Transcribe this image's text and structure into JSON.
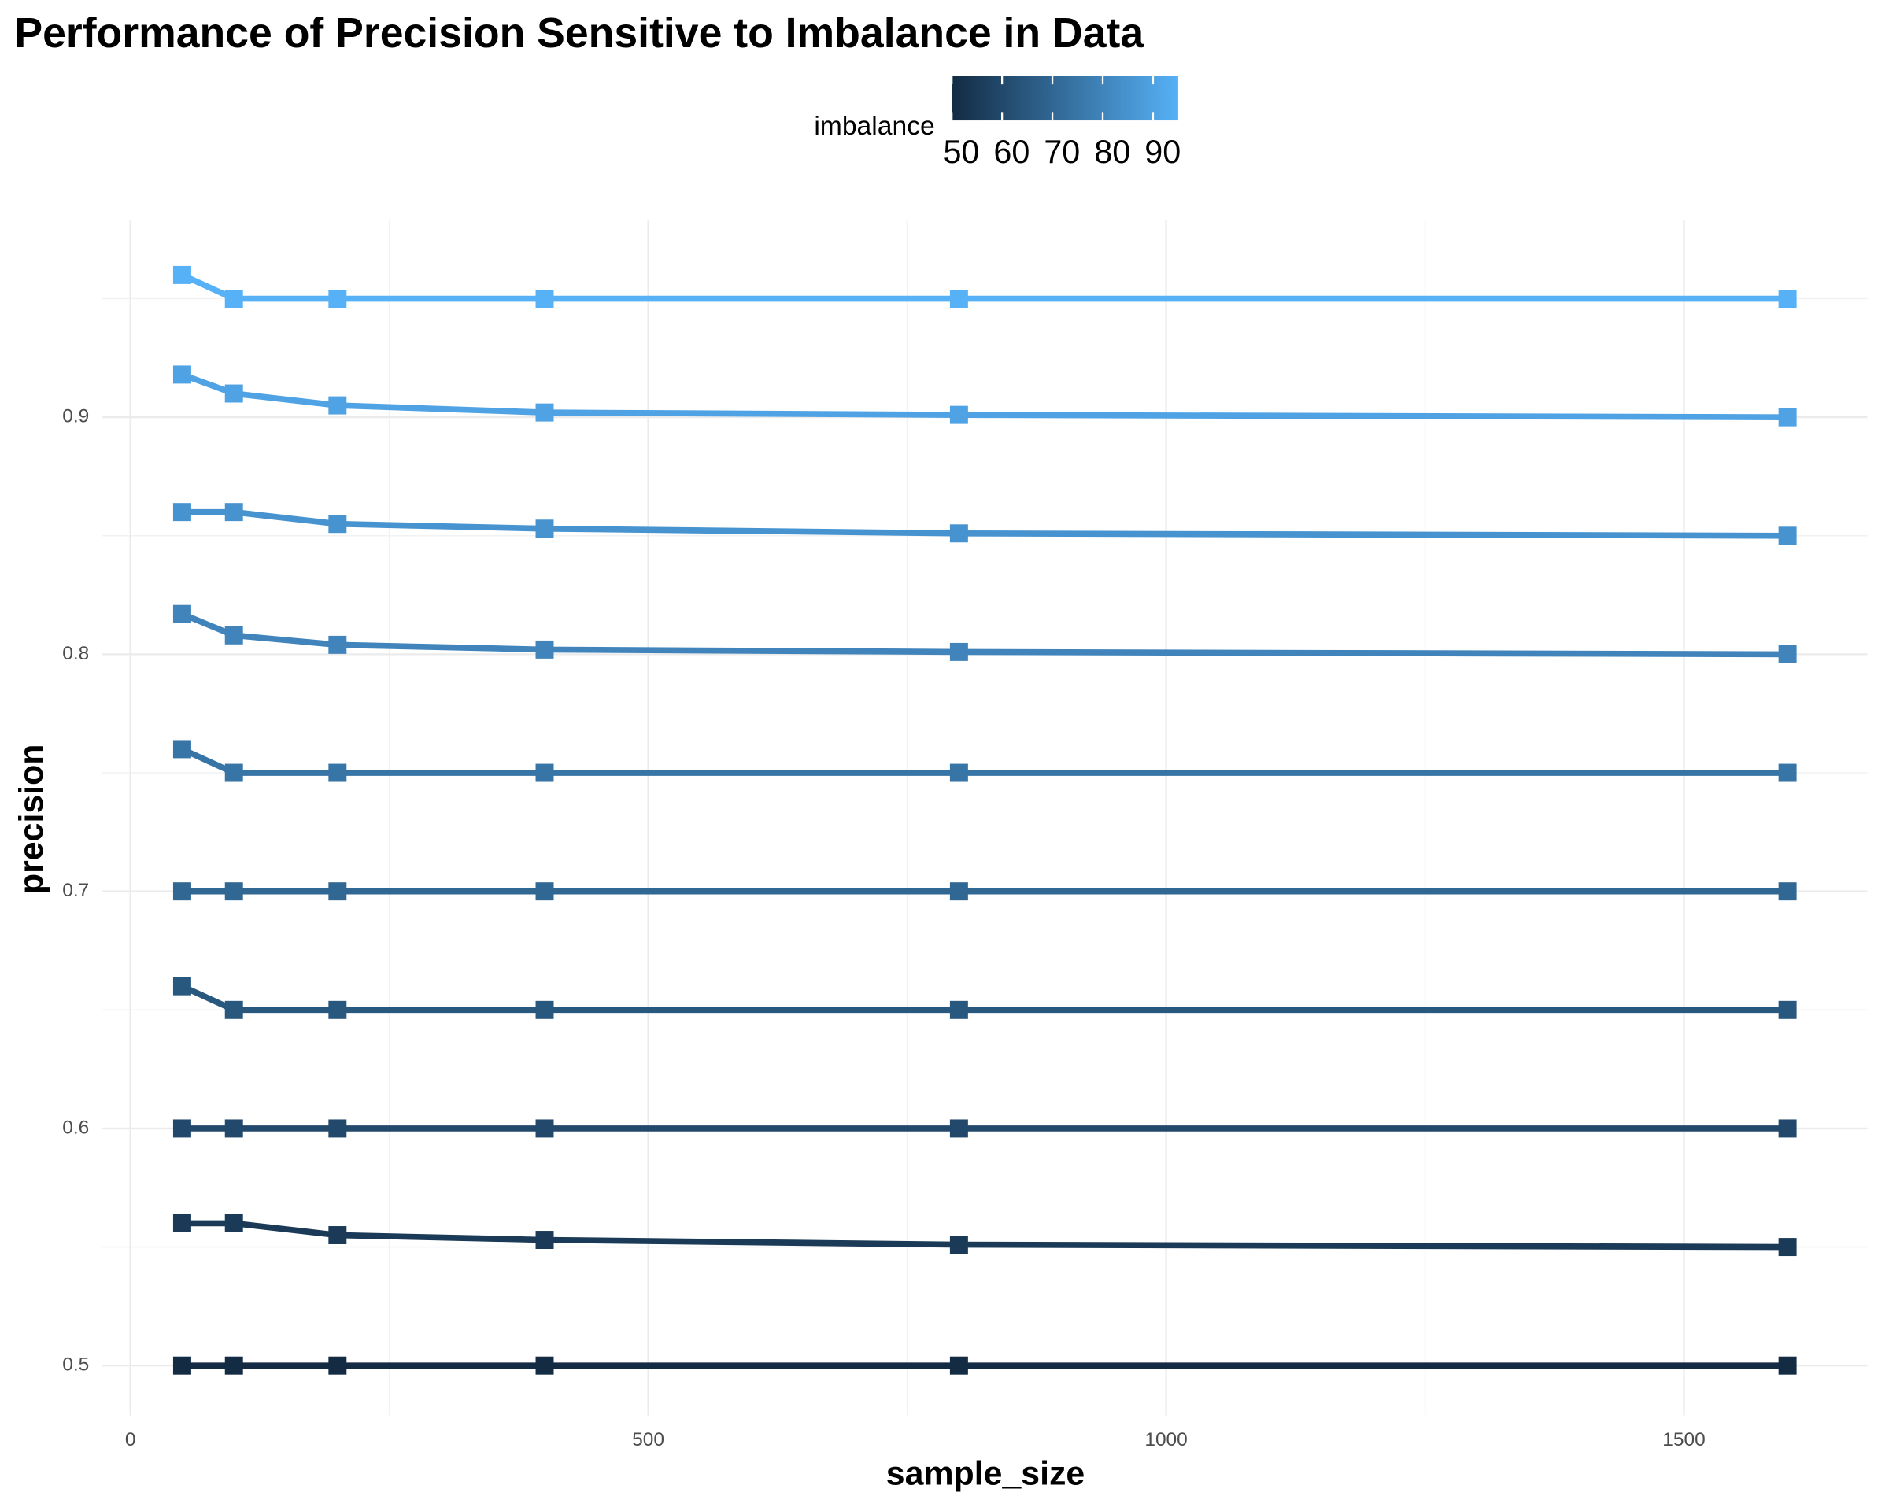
{
  "chart_data": {
    "type": "line",
    "title": "Performance of Precision Sensitive to Imbalance in Data",
    "x_label": "sample_size",
    "y_label": "precision",
    "x": [
      50,
      100,
      200,
      400,
      800,
      1600
    ],
    "series": [
      {
        "imbalance": 50,
        "values": [
          0.5,
          0.5,
          0.5,
          0.5,
          0.5,
          0.5
        ]
      },
      {
        "imbalance": 55,
        "values": [
          0.56,
          0.56,
          0.555,
          0.553,
          0.551,
          0.55
        ]
      },
      {
        "imbalance": 60,
        "values": [
          0.6,
          0.6,
          0.6,
          0.6,
          0.6,
          0.6
        ]
      },
      {
        "imbalance": 65,
        "values": [
          0.66,
          0.65,
          0.65,
          0.65,
          0.65,
          0.65
        ]
      },
      {
        "imbalance": 70,
        "values": [
          0.7,
          0.7,
          0.7,
          0.7,
          0.7,
          0.7
        ]
      },
      {
        "imbalance": 75,
        "values": [
          0.76,
          0.75,
          0.75,
          0.75,
          0.75,
          0.75
        ]
      },
      {
        "imbalance": 80,
        "values": [
          0.817,
          0.808,
          0.804,
          0.802,
          0.801,
          0.8
        ]
      },
      {
        "imbalance": 85,
        "values": [
          0.86,
          0.86,
          0.855,
          0.853,
          0.851,
          0.85
        ]
      },
      {
        "imbalance": 90,
        "values": [
          0.918,
          0.91,
          0.905,
          0.902,
          0.901,
          0.9
        ]
      },
      {
        "imbalance": 95,
        "values": [
          0.96,
          0.95,
          0.95,
          0.95,
          0.95,
          0.95
        ]
      }
    ],
    "colorbar": {
      "title": "imbalance",
      "low": "#132B43",
      "high": "#56B1F7",
      "lim": [
        50,
        95
      ],
      "ticks": [
        50,
        60,
        70,
        80,
        90
      ]
    },
    "xlim": [
      -27,
      1677
    ],
    "xticks": [
      0,
      500,
      1000,
      1500
    ],
    "ylim": [
      0.479,
      0.983
    ],
    "yticks": [
      0.5,
      0.6,
      0.7,
      0.8,
      0.9
    ],
    "grid": true
  }
}
